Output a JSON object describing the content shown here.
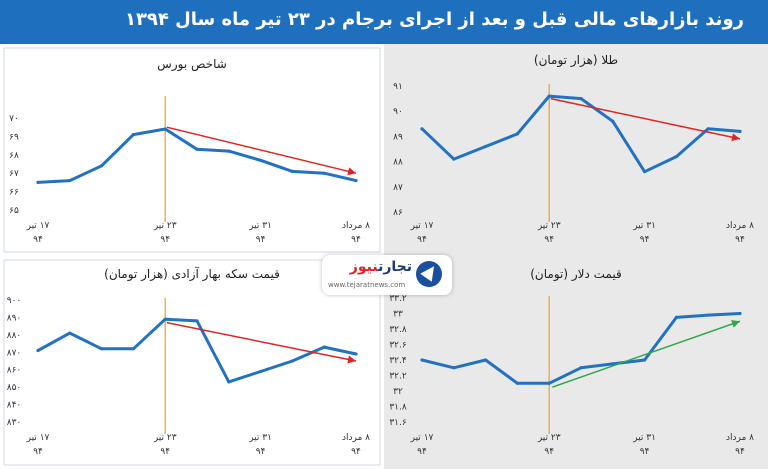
{
  "header": {
    "title": "روند بازارهای مالی قبل و بعد از اجرای برجام در ۲۳ تیر ماه سال ۱۳۹۴"
  },
  "logo": {
    "name_part1": "تجارت",
    "name_part2": "نیوز",
    "url": "www.tejaratnews.com"
  },
  "colors": {
    "header_bg": "#1f6fbf",
    "series": "#2272c3",
    "trend_down": "#e02424",
    "trend_up": "#2fa84a",
    "marker": "#f4a23a",
    "panel_bg_light": "#ffffff",
    "panel_bg_gray": "#e9e9e9"
  },
  "chart_data": [
    {
      "id": "bourse",
      "type": "line",
      "title": "شاخص بورس",
      "x_labels": [
        {
          "line1": "۱۷ تیر",
          "line2": "۹۴"
        },
        {
          "line1": "۲۳ تیر",
          "line2": "۹۴"
        },
        {
          "line1": "۳۱ تیر",
          "line2": "۹۴"
        },
        {
          "line1": "۸ مرداد",
          "line2": "۹۴"
        }
      ],
      "y_ticks": [
        "۶۵",
        "۶۶",
        "۶۷",
        "۶۸",
        "۶۹",
        "۷۰"
      ],
      "y_tick_values": [
        65,
        66,
        67,
        68,
        69,
        70
      ],
      "ylim": [
        65,
        70
      ],
      "values": [
        66.5,
        66.6,
        67.4,
        69.1,
        69.4,
        68.3,
        68.2,
        67.7,
        67.1,
        67.0,
        66.6
      ],
      "marker_index": 4,
      "trend": {
        "from": [
          4.05,
          69.5
        ],
        "to": [
          10,
          67.0
        ],
        "direction": "down"
      },
      "background": "light"
    },
    {
      "id": "gold",
      "type": "line",
      "title": "طلا (هزار تومان)",
      "x_labels": [
        {
          "line1": "۱۷ تیر",
          "line2": "۹۴"
        },
        {
          "line1": "۲۳ تیر",
          "line2": "۹۴"
        },
        {
          "line1": "۳۱ تیر",
          "line2": "۹۴"
        },
        {
          "line1": "۸ مرداد",
          "line2": "۹۴"
        }
      ],
      "y_ticks": [
        "۸۶",
        "۸۷",
        "۸۸",
        "۸۹",
        "۹۰",
        "۹۱"
      ],
      "y_tick_values": [
        86,
        87,
        88,
        89,
        90,
        91
      ],
      "ylim": [
        86,
        91
      ],
      "values": [
        89.3,
        88.1,
        88.6,
        89.1,
        90.6,
        90.5,
        89.6,
        87.6,
        88.2,
        89.3,
        89.2
      ],
      "marker_index": 4,
      "trend": {
        "from": [
          4.05,
          90.5
        ],
        "to": [
          10,
          88.9
        ],
        "direction": "down"
      },
      "background": "gray"
    },
    {
      "id": "coin",
      "type": "line",
      "title": "قیمت سکه بهار آزادی (هزار تومان)",
      "x_labels": [
        {
          "line1": "۱۷ تیر",
          "line2": "۹۴"
        },
        {
          "line1": "۲۳ تیر",
          "line2": "۹۴"
        },
        {
          "line1": "۳۱ تیر",
          "line2": "۹۴"
        },
        {
          "line1": "۸ مرداد",
          "line2": "۹۴"
        }
      ],
      "y_ticks": [
        "۸۳۰",
        "۸۴۰",
        "۸۵۰",
        "۸۶۰",
        "۸۷۰",
        "۸۸۰",
        "۸۹۰",
        "۹۰۰"
      ],
      "y_tick_values": [
        830,
        840,
        850,
        860,
        870,
        880,
        890,
        900
      ],
      "ylim": [
        830,
        900
      ],
      "values": [
        871,
        881,
        872,
        872,
        889,
        888,
        853,
        859,
        865,
        873,
        869
      ],
      "marker_index": 4,
      "trend": {
        "from": [
          4.05,
          887
        ],
        "to": [
          10,
          865
        ],
        "direction": "down"
      },
      "background": "light"
    },
    {
      "id": "dollar",
      "type": "line",
      "title": "قیمت دلار (تومان)",
      "x_labels": [
        {
          "line1": "۱۷ تیر",
          "line2": "۹۴"
        },
        {
          "line1": "۲۳ تیر",
          "line2": "۹۴"
        },
        {
          "line1": "۳۱ تیر",
          "line2": "۹۴"
        },
        {
          "line1": "۸ مرداد",
          "line2": "۹۴"
        }
      ],
      "y_ticks": [
        "۳۱.۶",
        "۳۱.۸",
        "۳۲",
        "۳۲.۲",
        "۳۲.۴",
        "۳۲.۶",
        "۳۲.۸",
        "۳۳",
        "۳۳.۲"
      ],
      "y_tick_values": [
        31.6,
        31.8,
        32.0,
        32.2,
        32.4,
        32.6,
        32.8,
        33.0,
        33.2
      ],
      "ylim": [
        31.6,
        33.2
      ],
      "values": [
        32.4,
        32.3,
        32.4,
        32.1,
        32.1,
        32.3,
        32.35,
        32.4,
        32.95,
        32.98,
        33.0
      ],
      "marker_index": 4,
      "trend": {
        "from": [
          4.1,
          32.05
        ],
        "to": [
          10,
          32.9
        ],
        "direction": "up"
      },
      "background": "gray"
    }
  ]
}
